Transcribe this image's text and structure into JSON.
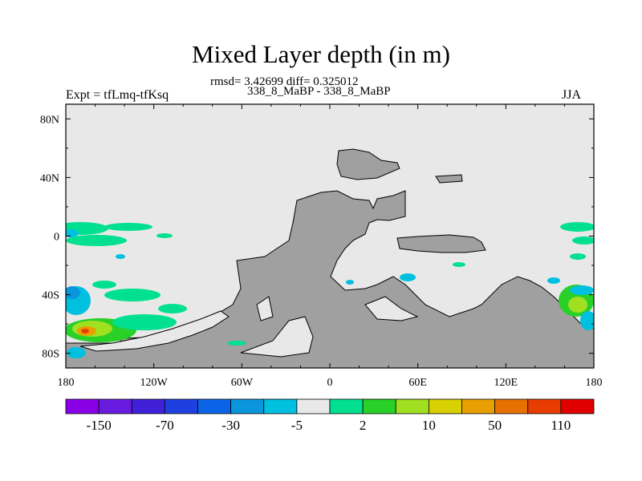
{
  "chart_data": {
    "type": "heatmap",
    "title": "Mixed Layer depth (in m)",
    "stats_line": "rmsd= 3.42699 diff= 0.325012",
    "run_label": "338_8_MaBP - 338_8_MaBP",
    "left_label": "Expt = tfLmq-tfKsq",
    "right_label": "JJA",
    "x_range": [
      -180,
      180
    ],
    "y_range": [
      -90,
      90
    ],
    "x_ticks": [
      {
        "value": -180,
        "label": "180"
      },
      {
        "value": -120,
        "label": "120W"
      },
      {
        "value": -60,
        "label": "60W"
      },
      {
        "value": 0,
        "label": "0"
      },
      {
        "value": 60,
        "label": "60E"
      },
      {
        "value": 120,
        "label": "120E"
      },
      {
        "value": 180,
        "label": "180"
      }
    ],
    "y_ticks": [
      {
        "value": 80,
        "label": "80N"
      },
      {
        "value": 40,
        "label": "40N"
      },
      {
        "value": 0,
        "label": "0"
      },
      {
        "value": -40,
        "label": "40S"
      },
      {
        "value": -80,
        "label": "80S"
      }
    ],
    "colorbar": {
      "colors": [
        "#8a00e6",
        "#6a1be0",
        "#4020d8",
        "#1e40e0",
        "#0a64e8",
        "#0a96dc",
        "#00c0e0",
        "#e8e8e8",
        "#00e090",
        "#28d028",
        "#a0e020",
        "#d8d000",
        "#e8a000",
        "#e87000",
        "#e83c00",
        "#e00000"
      ],
      "labels": [
        "-150",
        "-70",
        "-30",
        "-5",
        "2",
        "10",
        "50",
        "110"
      ]
    }
  }
}
